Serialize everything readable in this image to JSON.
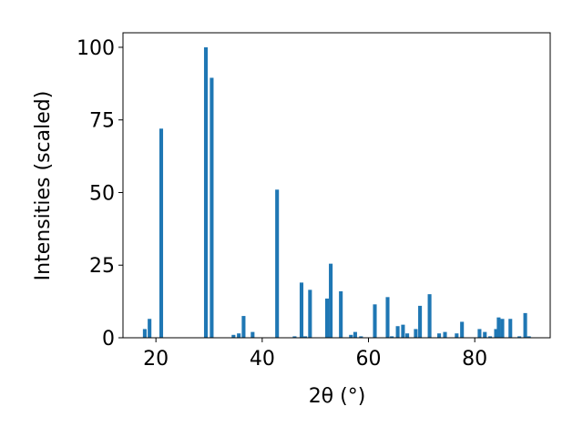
{
  "chart_data": {
    "type": "bar",
    "x_label": "2θ (°)",
    "y_label": "Intensities (scaled)",
    "color": "#1f77b4",
    "bar_width": 0.7,
    "x": [
      17.9,
      18.8,
      21.0,
      29.4,
      30.5,
      34.6,
      35.6,
      36.5,
      38.2,
      42.8,
      46.1,
      47.4,
      48.1,
      49.0,
      52.2,
      52.9,
      54.8,
      56.7,
      57.5,
      58.6,
      61.2,
      63.6,
      64.4,
      65.5,
      66.5,
      67.3,
      68.9,
      69.7,
      71.5,
      73.3,
      74.4,
      76.6,
      77.6,
      80.9,
      81.9,
      82.9,
      84.0,
      84.5,
      85.2,
      86.7,
      88.4,
      89.5,
      90.2
    ],
    "values": [
      3,
      6.5,
      72,
      100,
      89.5,
      1,
      1.5,
      7.5,
      2,
      51,
      0.5,
      19,
      0.5,
      16.5,
      13.5,
      25.5,
      16,
      1,
      2,
      0.5,
      11.5,
      14,
      0.5,
      4,
      4.5,
      1.5,
      3,
      11,
      15,
      1.5,
      2,
      1.5,
      5.5,
      3,
      2,
      0.5,
      3,
      7,
      6.5,
      6.5,
      0.5,
      8.5,
      0.5
    ],
    "xlim": [
      13.8,
      94.2
    ],
    "ylim": [
      0,
      105
    ],
    "xticks": [
      20,
      40,
      60,
      80
    ],
    "yticks": [
      0,
      25,
      50,
      75,
      100
    ]
  }
}
